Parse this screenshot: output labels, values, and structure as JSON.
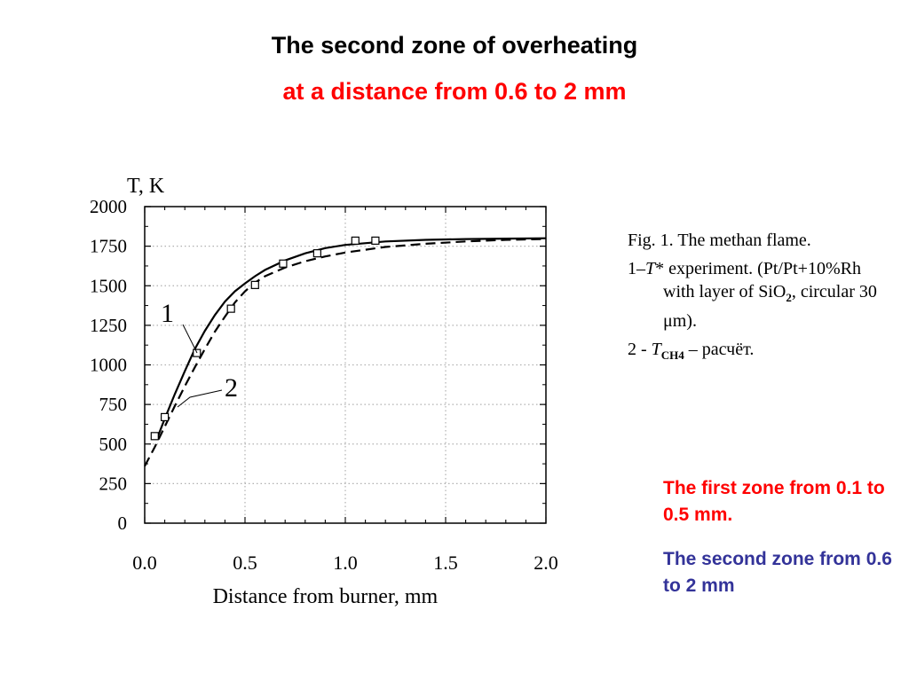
{
  "slide": {
    "title": "The second zone of overheating",
    "subtitle": "at a distance from 0.6 to 2 mm"
  },
  "caption": {
    "fig": "Fig. 1. The methan flame.",
    "exp_prefix": "1–",
    "exp_T": "T",
    "exp_rest": "* experiment. (Pt/Pt+10%Rh with layer of SiO",
    "exp_sub": "2",
    "exp_end": ", circular 30 μm).",
    "calc_prefix": "2 - ",
    "calc_T": "T",
    "calc_sub": "CH4",
    "calc_end": " – расчёт."
  },
  "notes": {
    "zone1": "The first zone from 0.1 to 0.5 mm.",
    "zone2": "The second zone from 0.6 to 2 mm"
  },
  "colors": {
    "title": "#000000",
    "subtitle": "#ff0000",
    "zone1": "#ff0000",
    "zone2": "#333399"
  },
  "chart_data": {
    "type": "line",
    "title": "",
    "xlabel": "Distance from burner, mm",
    "ylabel": "T, K",
    "xlim": [
      0.0,
      2.0
    ],
    "ylim": [
      0,
      2000
    ],
    "xticks": [
      "0.0",
      "0.5",
      "1.0",
      "1.5",
      "2.0"
    ],
    "yticks": [
      "0",
      "250",
      "500",
      "750",
      "1000",
      "1250",
      "1500",
      "1750",
      "2000"
    ],
    "grid": true,
    "series": [
      {
        "name": "1",
        "style": "solid",
        "x": [
          0.06,
          0.1,
          0.15,
          0.2,
          0.25,
          0.3,
          0.35,
          0.4,
          0.45,
          0.5,
          0.55,
          0.6,
          0.7,
          0.8,
          0.9,
          1.0,
          1.2,
          1.4,
          1.6,
          1.8,
          2.0
        ],
        "y": [
          530,
          660,
          815,
          960,
          1100,
          1215,
          1315,
          1400,
          1465,
          1515,
          1560,
          1600,
          1660,
          1705,
          1738,
          1758,
          1780,
          1790,
          1795,
          1798,
          1800
        ]
      },
      {
        "name": "2",
        "style": "dashed",
        "x": [
          0.0,
          0.05,
          0.1,
          0.15,
          0.2,
          0.25,
          0.3,
          0.35,
          0.4,
          0.45,
          0.5,
          0.55,
          0.6,
          0.7,
          0.8,
          0.9,
          1.0,
          1.2,
          1.4,
          1.6,
          1.8,
          2.0
        ],
        "y": [
          360,
          480,
          610,
          740,
          865,
          985,
          1100,
          1210,
          1305,
          1395,
          1465,
          1520,
          1560,
          1615,
          1655,
          1685,
          1710,
          1745,
          1765,
          1780,
          1790,
          1795
        ]
      },
      {
        "name": "experiment",
        "style": "markers",
        "x": [
          0.05,
          0.1,
          0.26,
          0.43,
          0.55,
          0.69,
          0.86,
          1.05,
          1.15
        ],
        "y": [
          550,
          670,
          1075,
          1355,
          1505,
          1640,
          1705,
          1785,
          1785
        ]
      }
    ],
    "annotations": [
      "1",
      "2"
    ]
  }
}
